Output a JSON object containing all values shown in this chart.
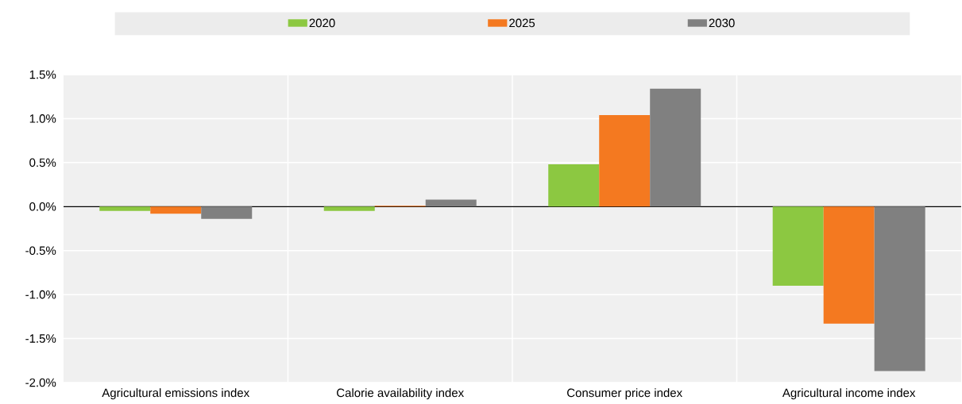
{
  "chart_data": {
    "type": "bar",
    "categories": [
      "Agricultural emissions index",
      "Calorie availability index",
      "Consumer price index",
      "Agricultural income index"
    ],
    "series": [
      {
        "name": "2020",
        "color": "#8cc841",
        "values": [
          -0.05,
          -0.05,
          0.48,
          -0.9
        ]
      },
      {
        "name": "2025",
        "color": "#f47920",
        "values": [
          -0.08,
          0.01,
          1.04,
          -1.33
        ]
      },
      {
        "name": "2030",
        "color": "#808080",
        "values": [
          -0.14,
          0.08,
          1.34,
          -1.87
        ]
      }
    ],
    "ylim": [
      -2.0,
      1.5
    ],
    "yticks": [
      {
        "value": -2.0,
        "label": "-2.0%"
      },
      {
        "value": -1.5,
        "label": "-1.5%"
      },
      {
        "value": -1.0,
        "label": "-1.0%"
      },
      {
        "value": -0.5,
        "label": "-0.5%"
      },
      {
        "value": 0,
        "label": "0.0%"
      },
      {
        "value": 0.5,
        "label": "0.5%"
      },
      {
        "value": 1.0,
        "label": "1.0%"
      },
      {
        "value": 1.5,
        "label": "1.5%"
      }
    ],
    "grid": true,
    "legend": "top"
  }
}
